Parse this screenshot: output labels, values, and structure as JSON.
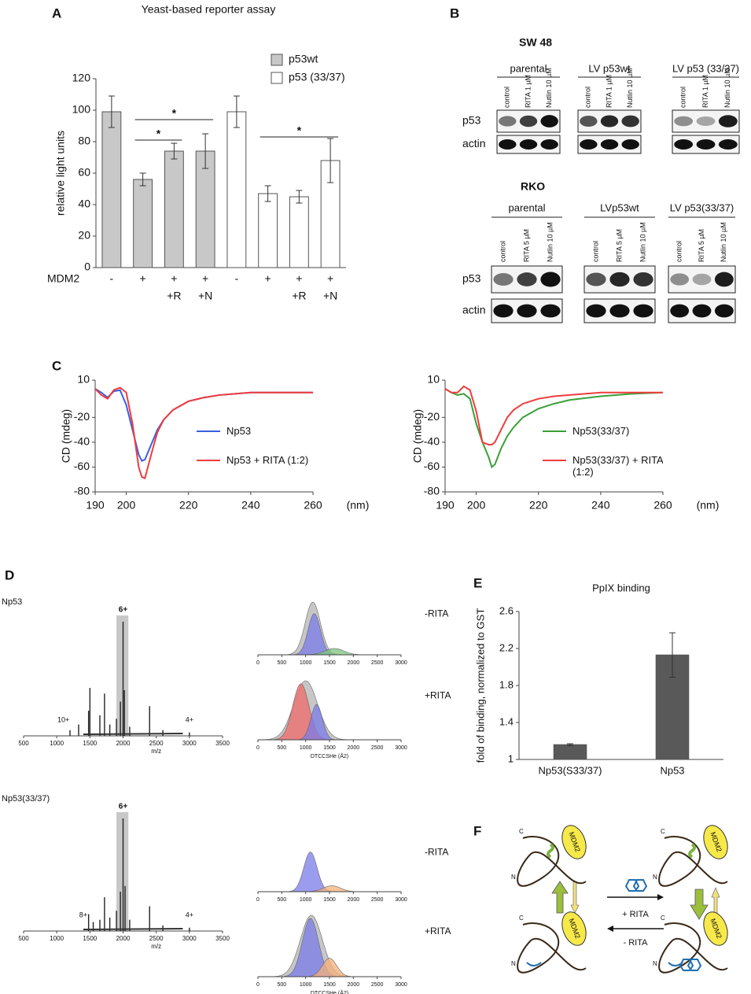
{
  "panel_labels": [
    "A",
    "B",
    "C",
    "D",
    "E",
    "F"
  ],
  "chart_data": [
    {
      "type": "bar",
      "title": "Yeast-based reporter assay",
      "ylabel": "relative light units",
      "category_axis_label": "MDM2",
      "categories": [
        "-",
        "+",
        "+",
        "+",
        "-",
        "+",
        "+",
        "+"
      ],
      "sub_categories": [
        null,
        null,
        "+R",
        "+N",
        null,
        null,
        "+R",
        "+N"
      ],
      "series": [
        {
          "name": "p53wt",
          "color": "#c8c8c8",
          "values": [
            99,
            56,
            74,
            74,
            null,
            null,
            null,
            null
          ],
          "errors": [
            10,
            4,
            5,
            11,
            null,
            null,
            null,
            null
          ]
        },
        {
          "name": "p53 (33/37)",
          "color": "#ffffff",
          "values": [
            null,
            null,
            null,
            null,
            99,
            47,
            45,
            68
          ],
          "errors": [
            null,
            null,
            null,
            null,
            10,
            5,
            4,
            14
          ]
        }
      ],
      "ylim": [
        0,
        120
      ],
      "yticks": [
        0,
        20,
        40,
        60,
        80,
        100,
        120
      ],
      "legend": "upper right",
      "significance": [
        {
          "label": "*",
          "from": 1,
          "to": 2,
          "y": 81
        },
        {
          "label": "*",
          "from": 1,
          "to": 3,
          "y": 94
        },
        {
          "label": "*",
          "from": 5,
          "to": 7,
          "y": 83
        }
      ]
    },
    {
      "type": "line",
      "ylabel": "CD (mdeg)",
      "xlabel": "(nm)",
      "x": [
        190,
        192,
        194,
        196,
        198,
        200,
        202,
        204,
        205,
        206,
        208,
        210,
        212,
        215,
        220,
        225,
        230,
        240,
        250,
        260
      ],
      "series": [
        {
          "name": "Np53",
          "color": "#3a5fe0",
          "values": [
            3,
            0,
            -4,
            1,
            2,
            -10,
            -30,
            -50,
            -55,
            -54,
            -42,
            -30,
            -22,
            -14,
            -7,
            -4,
            -2,
            0,
            0,
            0
          ]
        },
        {
          "name": "Np53 + RITA (1:2)",
          "color": "#f03c3c",
          "values": [
            3,
            -2,
            -5,
            2,
            4,
            0,
            -25,
            -60,
            -68,
            -69,
            -50,
            -32,
            -22,
            -14,
            -7,
            -4,
            -2,
            0,
            0,
            0
          ]
        }
      ],
      "xlim": [
        190,
        260
      ],
      "xticks": [
        190,
        200,
        220,
        240,
        260
      ],
      "ylim": [
        -80,
        10
      ],
      "yticks": [
        10,
        -20,
        -40,
        -60,
        -80
      ]
    },
    {
      "type": "line",
      "ylabel": "CD (mdeg)",
      "xlabel": "(nm)",
      "x": [
        190,
        192,
        194,
        196,
        198,
        200,
        202,
        204,
        205,
        206,
        208,
        210,
        212,
        215,
        220,
        225,
        230,
        240,
        250,
        260
      ],
      "series": [
        {
          "name": "Np53(33/37)",
          "color": "#3aa03a",
          "values": [
            3,
            0,
            -2,
            -1,
            -5,
            -25,
            -40,
            -52,
            -60,
            -58,
            -45,
            -35,
            -28,
            -20,
            -13,
            -9,
            -6,
            -3,
            -1,
            0
          ]
        },
        {
          "name": "Np53(33/37) + RITA (1:2)",
          "color": "#f03c3c",
          "values": [
            3,
            0,
            0,
            5,
            2,
            -15,
            -40,
            -42,
            -42,
            -40,
            -30,
            -20,
            -14,
            -9,
            -5,
            -3,
            -2,
            0,
            0,
            0
          ]
        }
      ],
      "xlim": [
        190,
        260
      ],
      "xticks": [
        190,
        200,
        220,
        240,
        260
      ],
      "ylim": [
        -80,
        10
      ],
      "yticks": [
        10,
        -20,
        -40,
        -60,
        -80
      ]
    },
    {
      "type": "bar",
      "title": "PpIX binding",
      "ylabel": "fold of binding, normalized to GST",
      "categories": [
        "Np53(S33/37)",
        "Np53"
      ],
      "values": [
        1.16,
        2.13
      ],
      "errors": [
        0.01,
        0.24
      ],
      "color": "#595959",
      "ylim": [
        1,
        2.6
      ],
      "yticks": [
        1,
        1.4,
        1.8,
        2.2,
        2.6
      ]
    },
    {
      "type": "spectrum",
      "name": "Np53",
      "xlabel": "m/z",
      "highlight": [
        1900,
        2080
      ],
      "x": [
        1200,
        1330,
        1480,
        1500,
        1650,
        1720,
        1800,
        1900,
        1960,
        2000,
        2020,
        2100,
        2400,
        2600,
        3000
      ],
      "values": [
        5,
        10,
        22,
        42,
        18,
        37,
        10,
        15,
        30,
        100,
        40,
        8,
        26,
        5,
        3
      ],
      "charge_labels": [
        {
          "label": "6+",
          "x": 2000
        },
        {
          "label": "10+",
          "x": 1100
        },
        {
          "label": "4+",
          "x": 3000
        }
      ],
      "xlim": [
        500,
        3500
      ],
      "xticks": [
        500,
        1000,
        1500,
        2000,
        2500,
        3000,
        3500
      ],
      "ylim": [
        0,
        100
      ]
    },
    {
      "type": "distribution",
      "label": "-RITA",
      "xlim": [
        0,
        3000
      ],
      "xticks": [
        0,
        500,
        1000,
        1500,
        2000,
        2500,
        3000
      ],
      "ylim": [
        0,
        100
      ],
      "components": [
        {
          "color": "#b4b4b4",
          "mean": 1150,
          "sd": 160,
          "height": 100
        },
        {
          "color": "#7b7bea",
          "mean": 1180,
          "sd": 130,
          "height": 78
        },
        {
          "color": "#7cc47c",
          "mean": 1600,
          "sd": 200,
          "height": 12
        }
      ]
    },
    {
      "type": "distribution",
      "label": "+RITA",
      "xlabel": "DTCCSHe (Å2)",
      "xlim": [
        0,
        3000
      ],
      "xticks": [
        0,
        500,
        1000,
        1500,
        2000,
        2500,
        3000
      ],
      "ylim": [
        0,
        100
      ],
      "components": [
        {
          "color": "#b4b4b4",
          "mean": 1000,
          "sd": 250,
          "height": 100
        },
        {
          "color": "#f06a6a",
          "mean": 900,
          "sd": 170,
          "height": 95
        },
        {
          "color": "#7b7bea",
          "mean": 1230,
          "sd": 120,
          "height": 60
        }
      ]
    },
    {
      "type": "spectrum",
      "name": "Np53(33/37)",
      "xlabel": "m/z",
      "highlight": [
        1900,
        2080
      ],
      "x": [
        1480,
        1550,
        1650,
        1720,
        1800,
        1900,
        1960,
        2000,
        2030,
        2100,
        2400,
        2600,
        3000
      ],
      "values": [
        15,
        8,
        10,
        30,
        12,
        18,
        35,
        100,
        40,
        10,
        22,
        5,
        3
      ],
      "charge_labels": [
        {
          "label": "6+",
          "x": 2000
        },
        {
          "label": "8+",
          "x": 1400
        },
        {
          "label": "4+",
          "x": 3000
        }
      ],
      "xlim": [
        500,
        3500
      ],
      "xticks": [
        500,
        1000,
        1500,
        2000,
        2500,
        3000,
        3500
      ],
      "ylim": [
        0,
        100
      ]
    },
    {
      "type": "distribution",
      "label": "-RITA",
      "xlim": [
        0,
        3000
      ],
      "xticks": [
        0,
        500,
        1000,
        1500,
        2000,
        2500,
        3000
      ],
      "ylim": [
        0,
        100
      ],
      "components": [
        {
          "color": "#7b7bea",
          "mean": 1100,
          "sd": 140,
          "height": 80
        },
        {
          "color": "#f4b07a",
          "mean": 1550,
          "sd": 180,
          "height": 12
        }
      ]
    },
    {
      "type": "distribution",
      "label": "+RITA",
      "xlabel": "DTCCSHe (Å2)",
      "xlim": [
        0,
        3000
      ],
      "xticks": [
        0,
        500,
        1000,
        1500,
        2000,
        2500,
        3000
      ],
      "ylim": [
        0,
        100
      ],
      "components": [
        {
          "color": "#b4b4b4",
          "mean": 1120,
          "sd": 230,
          "height": 100
        },
        {
          "color": "#7b7bea",
          "mean": 1100,
          "sd": 170,
          "height": 95
        },
        {
          "color": "#f4b07a",
          "mean": 1500,
          "sd": 150,
          "height": 30
        }
      ]
    }
  ],
  "blots": [
    {
      "title": "SW 48",
      "rows": [
        "p53",
        "actin"
      ],
      "groups": [
        {
          "label": "parental",
          "lanes": [
            "control",
            "RITA 1 µM",
            "Nutlin 10 µM"
          ]
        },
        {
          "label": "LV p53wt",
          "lanes": [
            "control",
            "RITA 1 µM",
            "Nutlin 10 µM"
          ]
        },
        {
          "label": "LV p53 (33/37)",
          "lanes": [
            "control",
            "RITA 1 µM",
            "Nutlin 10 µM"
          ]
        }
      ]
    },
    {
      "title": "RKO",
      "rows": [
        "p53",
        "actin"
      ],
      "groups": [
        {
          "label": "parental",
          "lanes": [
            "control",
            "RITA 5 µM",
            "Nutlin 10 µM"
          ]
        },
        {
          "label": "LVp53wt",
          "lanes": [
            "control",
            "RITA 5 µM",
            "Nutlin 10 µM"
          ]
        },
        {
          "label": "LV p53(33/37)",
          "lanes": [
            "control",
            "RITA 5 µM",
            "Nutlin 10 µM"
          ]
        }
      ]
    }
  ],
  "diagram": {
    "termini": [
      "C",
      "N"
    ],
    "partner": "MDM2",
    "forward": "+ RITA",
    "reverse": "- RITA"
  }
}
